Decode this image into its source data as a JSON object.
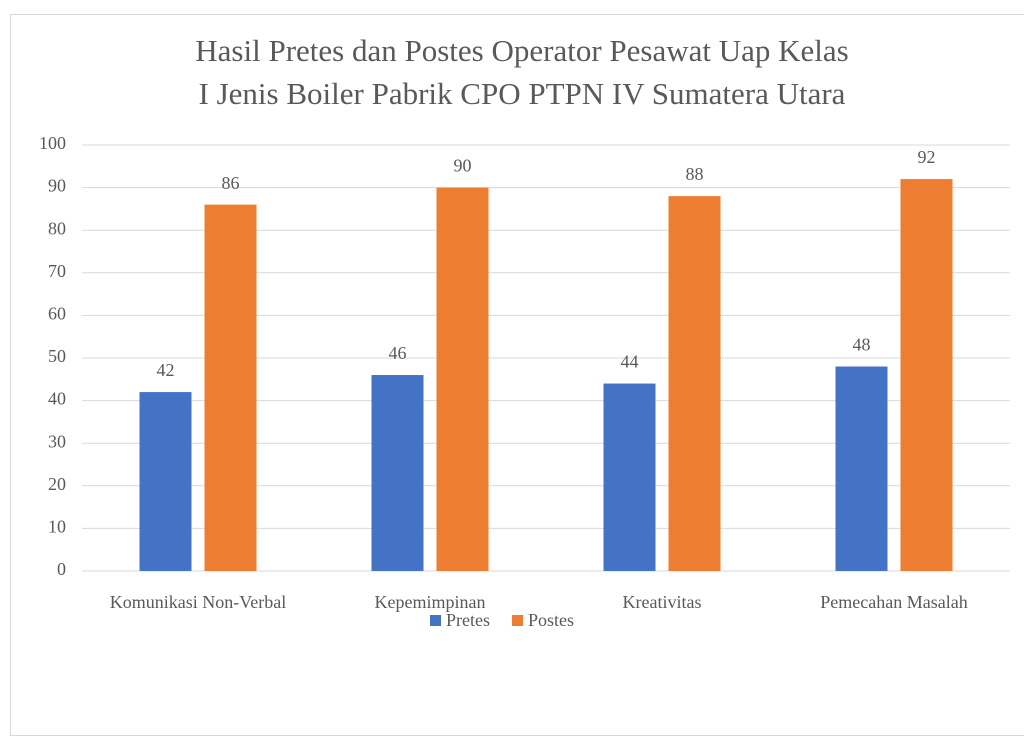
{
  "chart_data": {
    "type": "bar",
    "title": [
      "Hasil Pretes dan Postes Operator Pesawat Uap Kelas",
      "I Jenis Boiler Pabrik CPO PTPN IV Sumatera Utara"
    ],
    "categories": [
      "Komunikasi Non-Verbal",
      "Kepemimpinan",
      "Kreativitas",
      "Pemecahan Masalah"
    ],
    "series": [
      {
        "name": "Pretes",
        "color": "#4472c4",
        "values": [
          42,
          46,
          44,
          48
        ]
      },
      {
        "name": "Postes",
        "color": "#ed7d31",
        "values": [
          86,
          90,
          88,
          92
        ]
      }
    ],
    "ylim": [
      0,
      100
    ],
    "yticks": [
      0,
      10,
      20,
      30,
      40,
      50,
      60,
      70,
      80,
      90,
      100
    ],
    "grid": true,
    "legend": "bottom"
  }
}
